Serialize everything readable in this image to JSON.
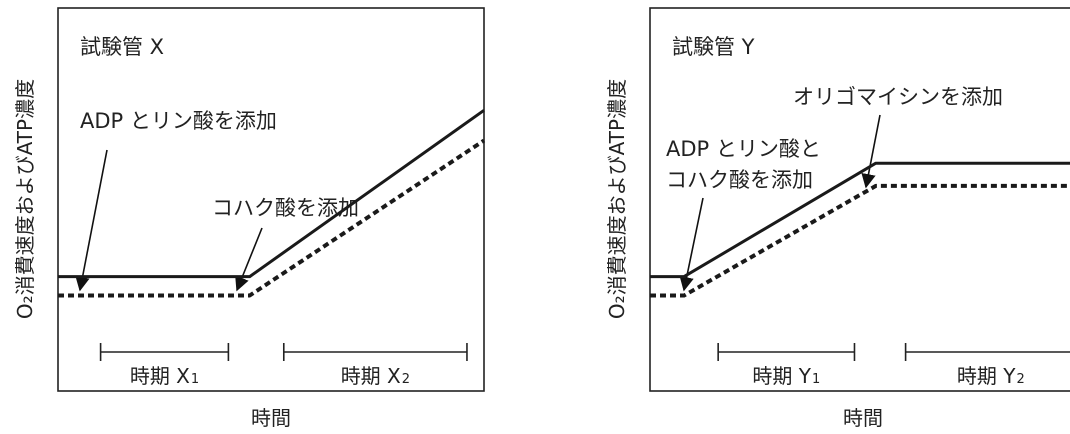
{
  "chart_data": [
    {
      "type": "line",
      "title": "試験管 X",
      "ylabel": "O₂消費速度およびATP濃度",
      "xlabel": "時間",
      "annotations": [
        "ADP とリン酸を添加",
        "コハク酸を添加"
      ],
      "periods": [
        {
          "label": "時期 X",
          "sub": "1",
          "start": 1,
          "end": 4
        },
        {
          "label": "時期 X",
          "sub": "2",
          "start": 5.3,
          "end": 9.6
        }
      ],
      "event_times": [
        0.5,
        4.5
      ],
      "series": [
        {
          "style": "solid",
          "points": [
            [
              0,
              3.0
            ],
            [
              4.5,
              3.0
            ],
            [
              10,
              7.4
            ]
          ]
        },
        {
          "style": "dashed",
          "points": [
            [
              0,
              2.5
            ],
            [
              4.5,
              2.5
            ],
            [
              10,
              6.6
            ]
          ]
        }
      ],
      "xlim": [
        0,
        10
      ],
      "ylim": [
        0,
        10
      ]
    },
    {
      "type": "line",
      "title": "試験管 Y",
      "ylabel": "O₂消費速度およびATP濃度",
      "xlabel": "時間",
      "annotations": [
        "オリゴマイシンを添加",
        "ADP とリン酸と",
        "コハク酸を添加"
      ],
      "periods": [
        {
          "label": "時期 Y",
          "sub": "1",
          "start": 1.6,
          "end": 4.8
        },
        {
          "label": "時期 Y",
          "sub": "2",
          "start": 6.0,
          "end": 10
        }
      ],
      "event_times": [
        0.8,
        5.3
      ],
      "series": [
        {
          "style": "solid",
          "points": [
            [
              0,
              3.0
            ],
            [
              0.8,
              3.0
            ],
            [
              5.3,
              6.0
            ],
            [
              10,
              6.0
            ]
          ]
        },
        {
          "style": "dashed",
          "points": [
            [
              0,
              2.5
            ],
            [
              0.8,
              2.5
            ],
            [
              5.3,
              5.4
            ],
            [
              10,
              5.4
            ]
          ]
        }
      ],
      "xlim": [
        0,
        10
      ],
      "ylim": [
        0,
        10
      ]
    }
  ]
}
